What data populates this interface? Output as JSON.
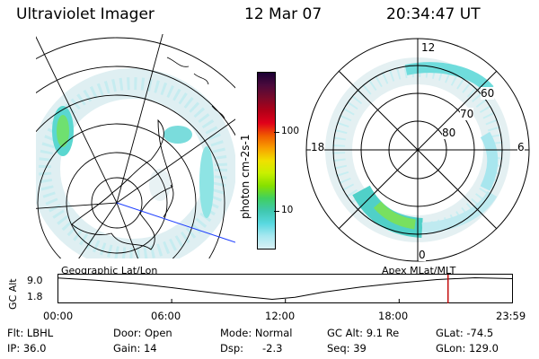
{
  "header": {
    "title": "Ultraviolet Imager",
    "date": "12 Mar 07",
    "time": "20:34:47 UT"
  },
  "colorbar": {
    "label": "photon cm-2s-1",
    "ticks": [
      "100",
      "10"
    ],
    "colors": [
      "#1a0033",
      "#4b0a3c",
      "#7a0a2a",
      "#b00018",
      "#e0001a",
      "#f05a00",
      "#f8a000",
      "#f0e000",
      "#c8f000",
      "#86e000",
      "#40d060",
      "#40c8b0",
      "#58d8e0",
      "#a8e8f0",
      "#d8f0f4"
    ]
  },
  "polar_map": {
    "lat_labels": [
      "60",
      "70",
      "80"
    ],
    "mlt_labels": [
      "12",
      "18",
      "6",
      "0"
    ]
  },
  "timeline": {
    "left_label": "Geographic Lat/Lon",
    "right_label": "Apex MLat/MLT",
    "axis_title": "GC Alt",
    "y_ticks": [
      "9.0",
      "1.8"
    ],
    "x_ticks": [
      "00:00",
      "06:00",
      "12:00",
      "18:00",
      "23:59"
    ],
    "altitude_profile": {
      "x_hours": [
        0,
        2,
        4,
        6,
        8,
        10,
        11.3,
        12.5,
        14,
        16,
        18,
        20,
        22,
        23.98
      ],
      "alt_re": [
        8.9,
        8.2,
        7.1,
        5.7,
        4.1,
        2.6,
        1.8,
        2.5,
        4.2,
        5.9,
        7.3,
        8.4,
        9.0,
        8.7
      ]
    },
    "current_time_hours": 20.58,
    "marker_color": "#c00000"
  },
  "info": {
    "flt": "Flt: LBHL",
    "ip": "IP: 36.0",
    "door": "Door: Open",
    "gain": "Gain: 14",
    "mode": "Mode: Normal",
    "dsp_label": "Dsp:",
    "dsp_value": "-2.3",
    "gcalt": "GC Alt: 9.1 Re",
    "seq": "Seq: 39",
    "glat": "GLat: -74.5",
    "glon": "GLon: 129.0"
  }
}
